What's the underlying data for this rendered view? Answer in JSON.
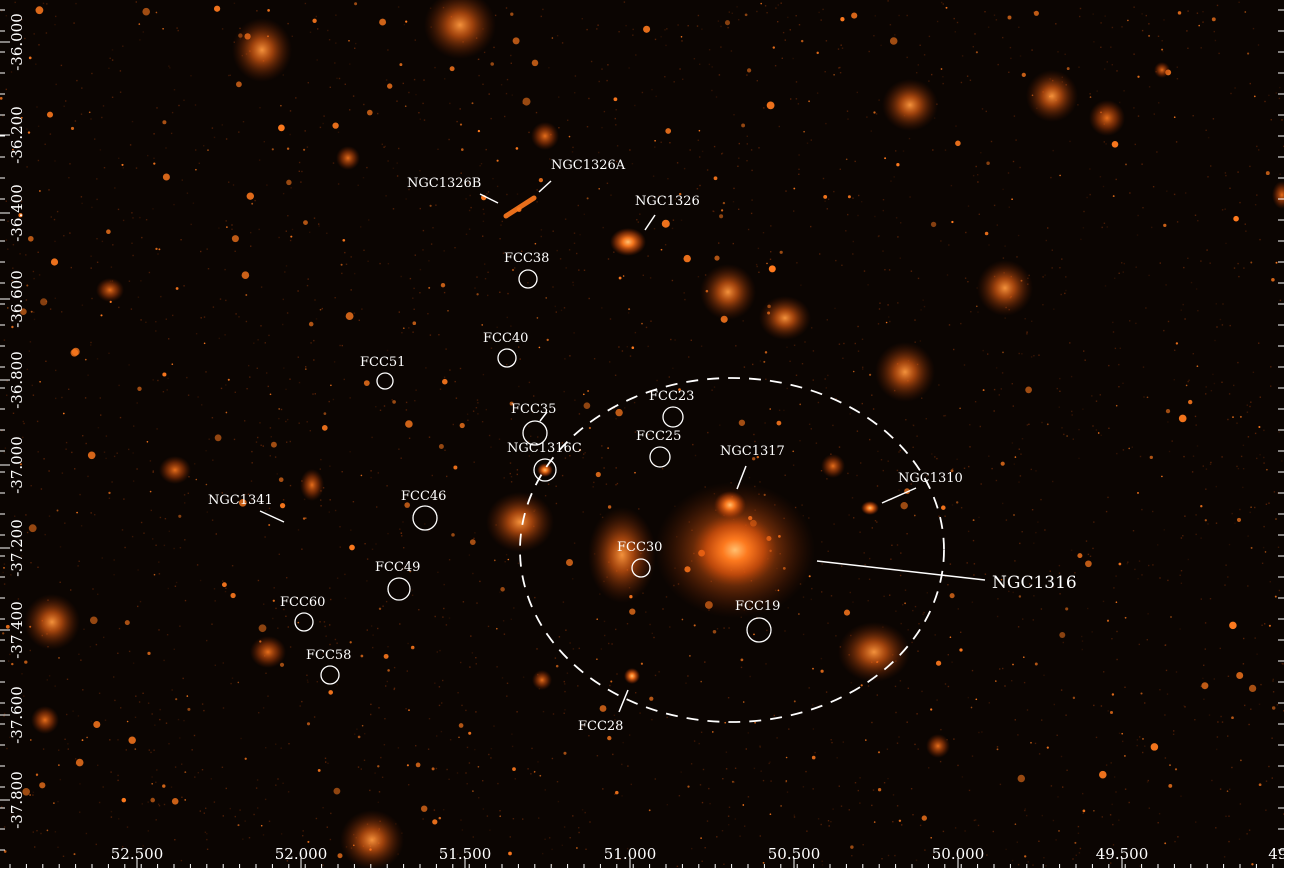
{
  "image": {
    "background_color": "#0b0502",
    "glow_color": "#ff6a1a",
    "core_color": "#ffb060",
    "label_color": "#ffffff"
  },
  "axes": {
    "ra_ticks": [
      "52.500",
      "52.000",
      "51.500",
      "51.000",
      "50.500",
      "50.000",
      "49.500",
      "49.0"
    ],
    "dec_ticks": [
      "-36.000",
      "-36.200",
      "-36.400",
      "-36.600",
      "-36.800",
      "-37.000",
      "-37.200",
      "-37.400",
      "-37.600",
      "-37.800"
    ]
  },
  "labels": {
    "ngc1316": "NGC1316",
    "ngc1317": "NGC1317",
    "ngc1310": "NGC1310",
    "ngc1316c": "NGC1316C",
    "ngc1326": "NGC1326",
    "ngc1326a": "NGC1326A",
    "ngc1326b": "NGC1326B",
    "ngc1341": "NGC1341",
    "fcc19": "FCC19",
    "fcc23": "FCC23",
    "fcc25": "FCC25",
    "fcc28": "FCC28",
    "fcc30": "FCC30",
    "fcc35": "FCC35",
    "fcc38": "FCC38",
    "fcc40": "FCC40",
    "fcc46": "FCC46",
    "fcc49": "FCC49",
    "fcc51": "FCC51",
    "fcc58": "FCC58",
    "fcc60": "FCC60"
  }
}
